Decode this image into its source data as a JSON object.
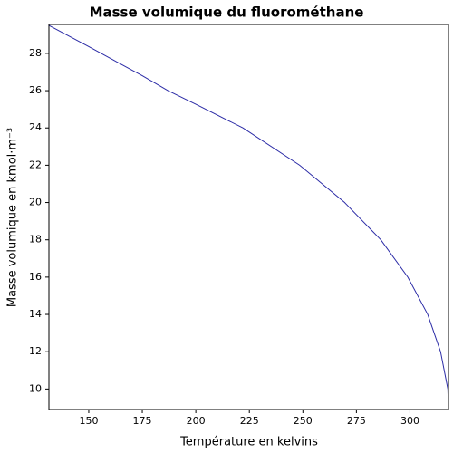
{
  "chart_data": {
    "type": "line",
    "title": "Masse volumique du fluorométhane",
    "x_label": "Température en kelvins",
    "y_label": "Masse volumique en kmol·m⁻³",
    "x": [
      131.4,
      150,
      175,
      187,
      200,
      222,
      248.5,
      269.5,
      286.4,
      299,
      308.3,
      314.3,
      317.7,
      318
    ],
    "series": [
      {
        "color": "#2b2ba6",
        "values": [
          29.5,
          28.36,
          26.8,
          26,
          25.27,
          24,
          22,
          20,
          18,
          16,
          14,
          12,
          10,
          9
        ]
      }
    ],
    "xlim": [
      131.4,
      318
    ],
    "ylim": [
      8.9,
      29.55
    ],
    "xticks": [
      150,
      175,
      200,
      225,
      250,
      275,
      300
    ],
    "yticks": [
      10,
      12,
      14,
      16,
      18,
      20,
      22,
      24,
      26,
      28
    ],
    "grid": false
  }
}
